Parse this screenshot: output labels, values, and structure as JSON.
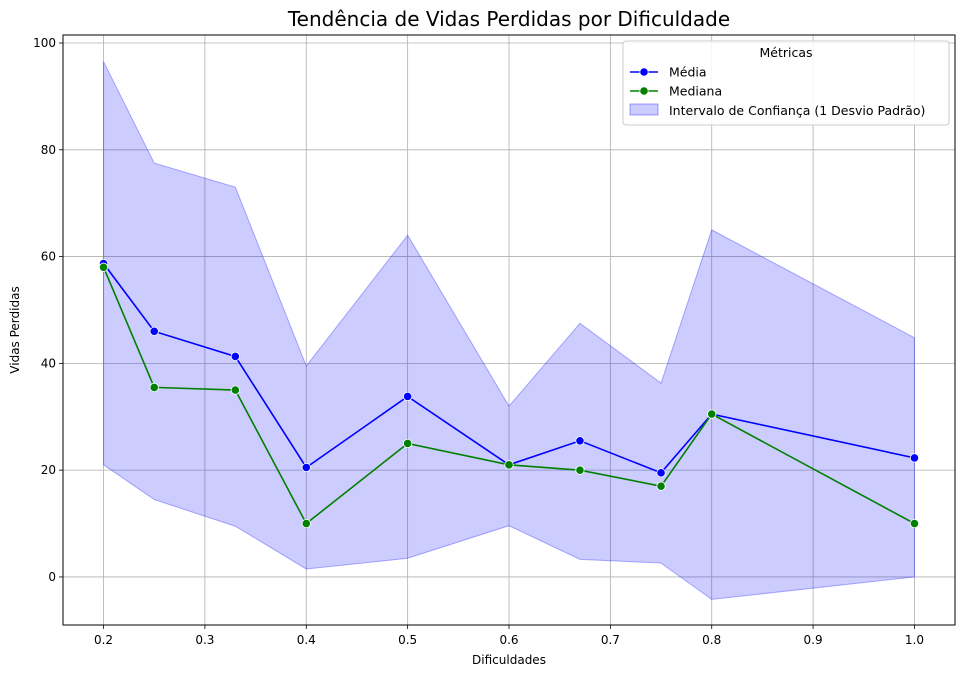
{
  "chart_data": {
    "type": "line",
    "title": "Tendência de Vidas Perdidas por Dificuldade",
    "xlabel": "Dificuldades",
    "ylabel": "Vidas Perdidas",
    "xlim": [
      0.16,
      1.04
    ],
    "ylim": [
      -9,
      101.5
    ],
    "xticks": [
      0.2,
      0.3,
      0.4,
      0.5,
      0.6,
      0.7,
      0.8,
      0.9,
      1.0
    ],
    "xtick_labels": [
      "0.2",
      "0.3",
      "0.4",
      "0.5",
      "0.6",
      "0.7",
      "0.8",
      "0.9",
      "1.0"
    ],
    "yticks": [
      0,
      20,
      40,
      60,
      80,
      100
    ],
    "ytick_labels": [
      "0",
      "20",
      "40",
      "60",
      "80",
      "100"
    ],
    "grid": true,
    "legend_position": "top-right",
    "legend_title": "Métricas",
    "x": [
      0.2,
      0.25,
      0.33,
      0.4,
      0.5,
      0.6,
      0.67,
      0.75,
      0.8,
      1.0
    ],
    "series": [
      {
        "name": "Média",
        "color": "#0000ff",
        "values": [
          58.7,
          46.0,
          41.3,
          20.5,
          33.8,
          21.0,
          25.5,
          19.5,
          30.5,
          22.3
        ]
      },
      {
        "name": "Mediana",
        "color": "#008000",
        "values": [
          58.0,
          35.5,
          35.0,
          10.0,
          25.0,
          21.0,
          20.0,
          17.0,
          30.5,
          10.0
        ]
      }
    ],
    "band": {
      "name": "Intervalo de Confiança (1 Desvio Padrão)",
      "color": "#0000ff",
      "upper": [
        96.5,
        77.5,
        73.0,
        39.5,
        64.0,
        32.0,
        47.5,
        36.3,
        65.0,
        44.8
      ],
      "lower": [
        21.0,
        14.5,
        9.5,
        1.5,
        3.5,
        9.6,
        3.3,
        2.6,
        -4.2,
        0.0
      ]
    }
  }
}
